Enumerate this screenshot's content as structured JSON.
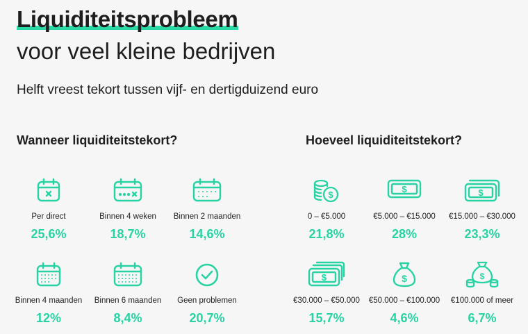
{
  "header": {
    "title": "Liquiditeitsprobleem",
    "subtitle": "voor veel kleine bedrijven",
    "lead": "Helft vreest tekort tussen vijf- en dertigduizend euro"
  },
  "colors": {
    "accent": "#2bd9a7",
    "background": "#f6f6f6",
    "text": "#1e1e1e"
  },
  "chart_data": [
    {
      "type": "table",
      "title": "Wanneer liquiditeitstekort?",
      "categories": [
        "Per direct",
        "Binnen 4 weken",
        "Binnen 2 maanden",
        "Binnen 4 maanden",
        "Binnen 6 maanden",
        "Geen problemen"
      ],
      "values": [
        25.6,
        18.7,
        14.6,
        12,
        8.4,
        20.7
      ],
      "value_labels": [
        "25,6%",
        "18,7%",
        "14,6%",
        "12%",
        "8,4%",
        "20,7%"
      ],
      "icons": [
        "calendar-x-icon",
        "calendar-dots-x-icon",
        "calendar-dots-icon",
        "calendar-grid-icon",
        "calendar-full-icon",
        "check-circle-icon"
      ]
    },
    {
      "type": "table",
      "title": "Hoeveel liquiditeitstekort?",
      "categories": [
        "0 – €5.000",
        "€5.000 – €15.000",
        "€15.000 – €30.000",
        "€30.000 – €50.000",
        "€50.000 – €100.000",
        "€100.000 of meer"
      ],
      "values": [
        21.8,
        28,
        23.3,
        15.7,
        4.6,
        6.7
      ],
      "value_labels": [
        "21,8%",
        "28%",
        "23,3%",
        "15,7%",
        "4,6%",
        "6,7%"
      ],
      "icons": [
        "coins-icon",
        "banknote-icon",
        "banknotes-two-icon",
        "banknotes-three-icon",
        "money-bag-icon",
        "money-bag-coins-icon"
      ]
    }
  ]
}
